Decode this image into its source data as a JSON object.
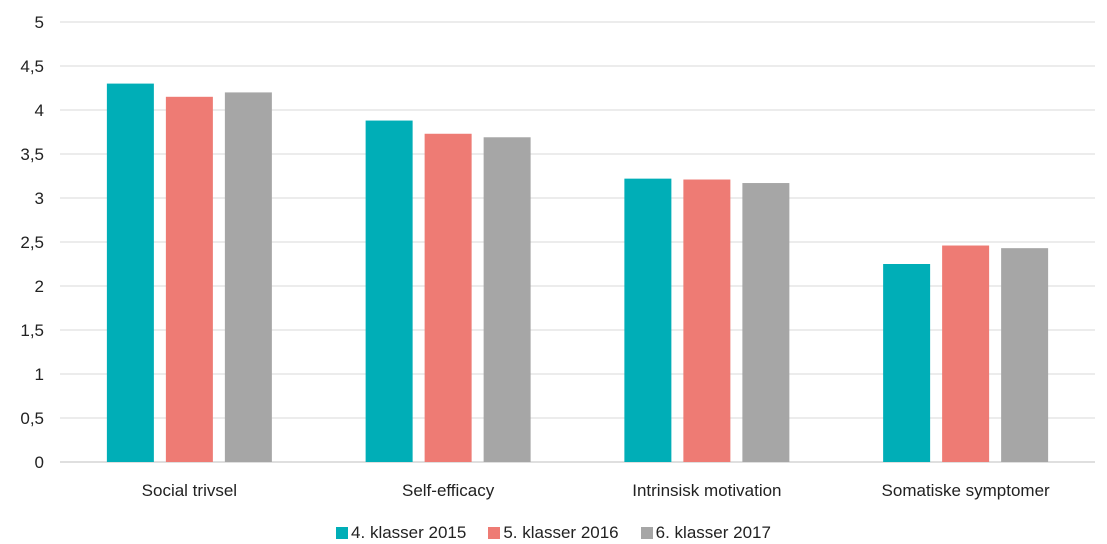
{
  "chart_data": {
    "type": "bar",
    "categories": [
      "Social trivsel",
      "Self-efficacy",
      "Intrinsisk motivation",
      "Somatiske symptomer"
    ],
    "series": [
      {
        "name": "4. klasser 2015",
        "color": "#00aeb7",
        "values": [
          4.3,
          3.88,
          3.22,
          2.25
        ]
      },
      {
        "name": "5. klasser 2016",
        "color": "#ee7b74",
        "values": [
          4.15,
          3.73,
          3.21,
          2.46
        ]
      },
      {
        "name": "6. klasser 2017",
        "color": "#a6a6a6",
        "values": [
          4.2,
          3.69,
          3.17,
          2.43
        ]
      }
    ],
    "ylim": [
      0,
      5
    ],
    "yticks": [
      "0",
      "0,5",
      "1",
      "1,5",
      "2",
      "2,5",
      "3",
      "3,5",
      "4",
      "4,5",
      "5"
    ],
    "grid": true,
    "legend_position": "bottom"
  }
}
